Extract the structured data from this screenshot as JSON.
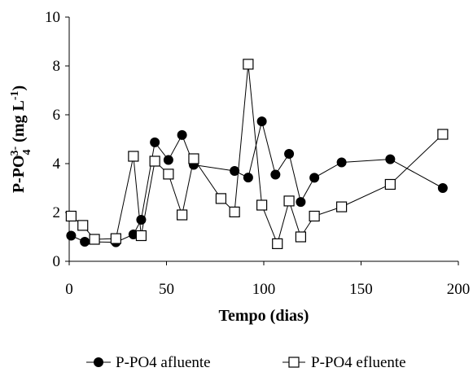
{
  "chart_data": {
    "type": "line",
    "title": "",
    "xlabel": "Tempo (dias)",
    "ylabel": {
      "base": "P-PO",
      "sub": "4",
      "sup": "3-",
      "unit_open": " (mg L",
      "unit_sup": "-1",
      "unit_close": ")"
    },
    "xlim": [
      0,
      200
    ],
    "ylim": [
      0,
      10
    ],
    "xticks": [
      0,
      50,
      100,
      150,
      200
    ],
    "yticks": [
      0,
      2,
      4,
      6,
      8,
      10
    ],
    "grid": false,
    "legend_position": "bottom",
    "series": [
      {
        "name": "P-PO4 afluente",
        "marker": "filled-circle",
        "color": "#000000",
        "x": [
          1,
          8,
          24,
          33,
          37,
          44,
          51,
          58,
          64,
          85,
          92,
          99,
          106,
          113,
          119,
          126,
          140,
          165,
          192
        ],
        "y": [
          1.05,
          0.8,
          0.78,
          1.1,
          1.7,
          4.87,
          4.15,
          5.17,
          3.95,
          3.7,
          3.43,
          5.73,
          3.55,
          4.4,
          2.43,
          3.42,
          4.05,
          4.18,
          3.0
        ]
      },
      {
        "name": "P-PO4 efluente",
        "marker": "open-square",
        "color": "#000000",
        "x": [
          1,
          7,
          13,
          24,
          33,
          37,
          44,
          51,
          58,
          64,
          78,
          85,
          92,
          99,
          107,
          113,
          119,
          126,
          140,
          165,
          192
        ],
        "y": [
          1.85,
          1.47,
          0.9,
          0.93,
          4.3,
          1.05,
          4.1,
          3.57,
          1.9,
          4.2,
          2.57,
          2.02,
          8.07,
          2.3,
          0.72,
          2.47,
          1.0,
          1.85,
          2.23,
          3.15,
          5.2
        ]
      }
    ]
  }
}
